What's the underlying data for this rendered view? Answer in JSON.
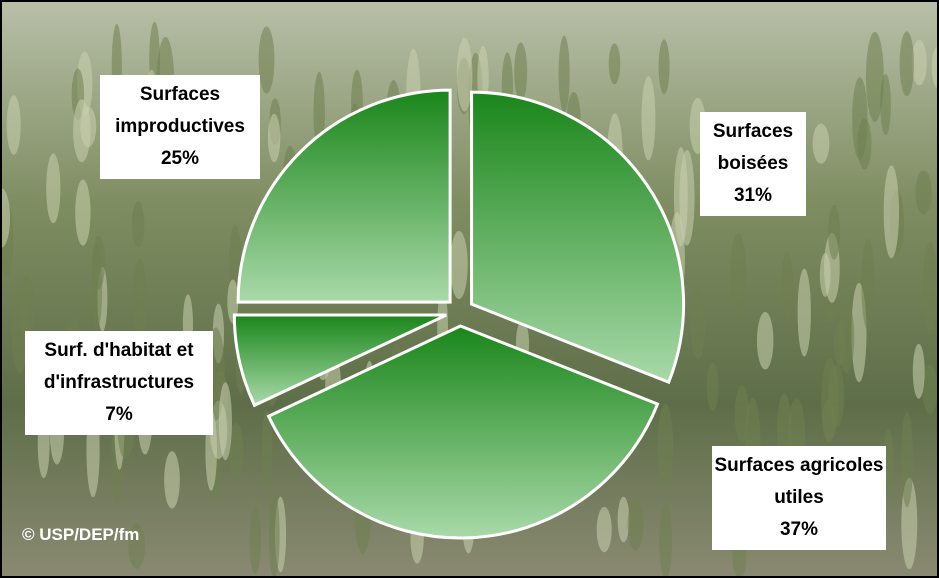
{
  "chart_data": {
    "type": "pie",
    "categories": [
      "Surfaces boisées",
      "Surfaces agricoles utiles",
      "Surf. d'habitat et d'infrastructures",
      "Surfaces improductives"
    ],
    "values": [
      31,
      37,
      7,
      25
    ],
    "value_labels": [
      "31%",
      "37%",
      "7%",
      "25%"
    ],
    "color": "#1f8a1f",
    "credit": "© USP/DEP/fm"
  }
}
